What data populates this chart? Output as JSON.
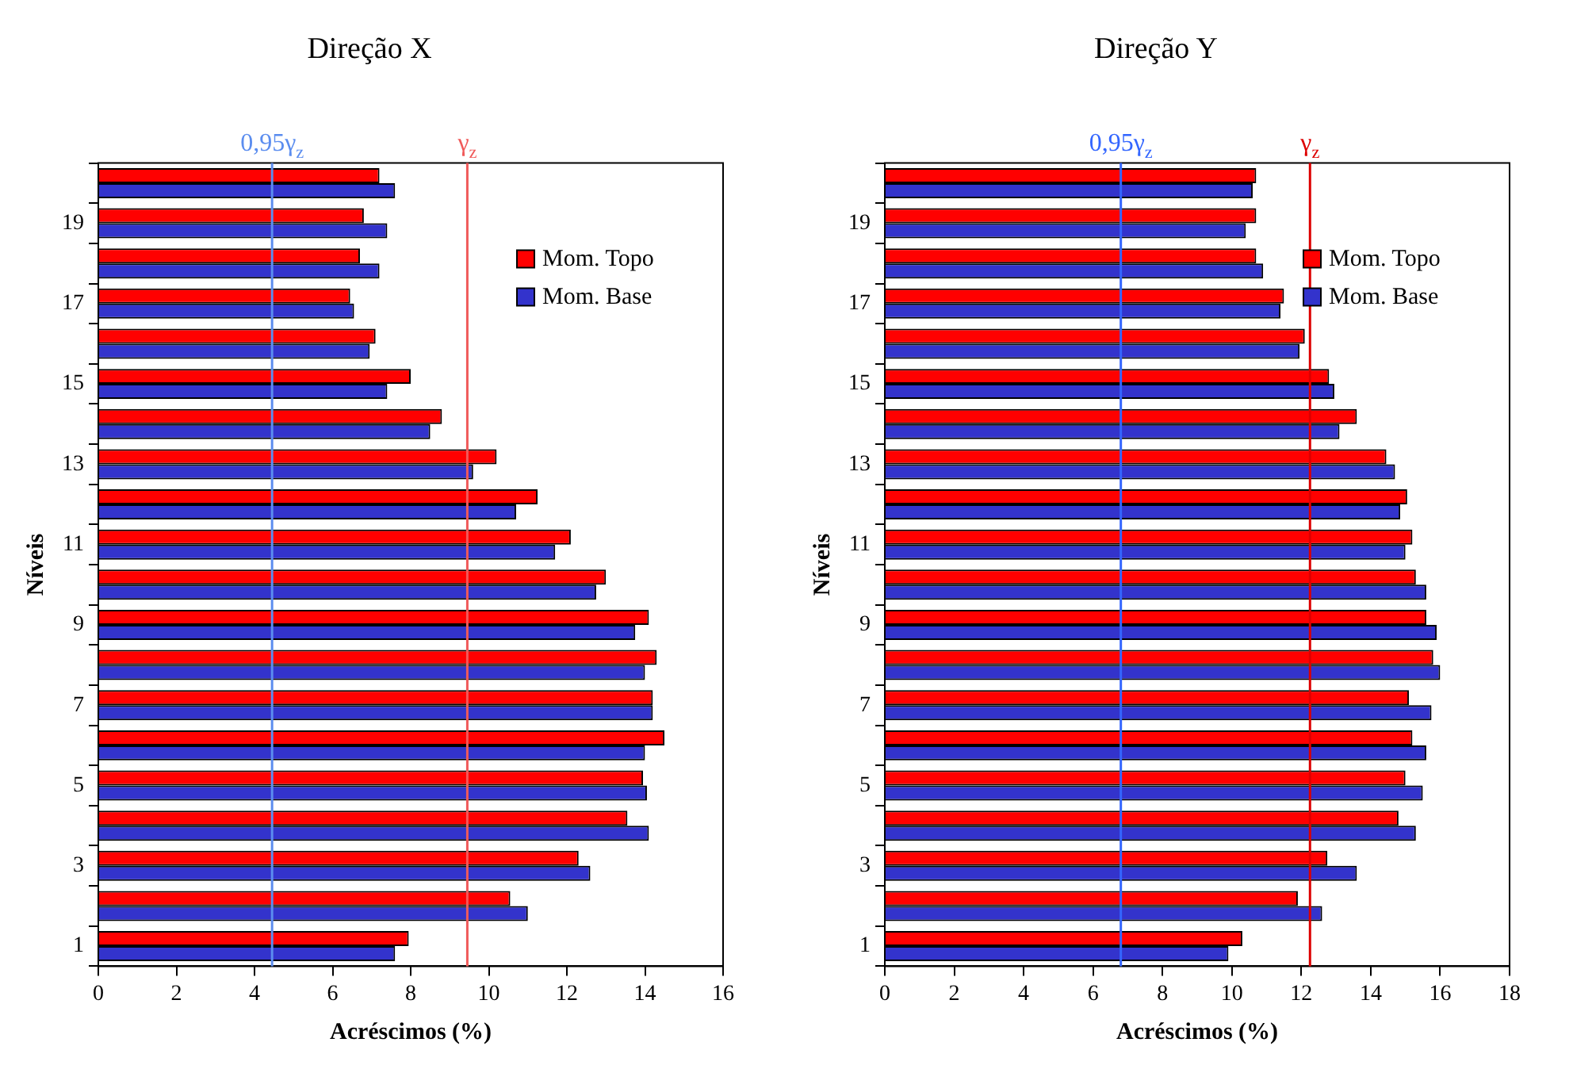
{
  "chart_data": [
    {
      "type": "bar",
      "orientation": "horizontal",
      "title": "Direção X",
      "xlabel": "Acréscimos (%)",
      "ylabel": "Níveis",
      "legend": "top right",
      "categories": [
        null,
        "19",
        null,
        "17",
        null,
        "15",
        null,
        "13",
        null,
        "11",
        null,
        "9",
        null,
        "7",
        null,
        "5",
        null,
        "3",
        null,
        "1"
      ],
      "series": [
        {
          "name": "Mom. Topo",
          "color": "#ff0000",
          "values": [
            7.2,
            6.8,
            6.7,
            6.45,
            7.1,
            8.0,
            8.8,
            10.2,
            11.25,
            12.1,
            13.0,
            14.1,
            14.3,
            14.2,
            14.5,
            13.95,
            13.55,
            12.3,
            10.55,
            7.95
          ]
        },
        {
          "name": "Mom. Base",
          "color": "#3333cc",
          "values": [
            7.6,
            7.4,
            7.2,
            6.55,
            6.95,
            7.4,
            8.5,
            9.6,
            10.7,
            11.7,
            12.75,
            13.75,
            14.0,
            14.2,
            14.0,
            14.05,
            14.1,
            12.6,
            11.0,
            7.6
          ]
        }
      ],
      "xlim": [
        0,
        16
      ],
      "xticks": [
        0,
        2,
        4,
        6,
        8,
        10,
        12,
        14,
        16
      ],
      "ref_lines": [
        {
          "axis": "x",
          "value": 4.45,
          "label": "0,95γ$_{z}$",
          "color": "#5b8def"
        },
        {
          "axis": "x",
          "value": 9.45,
          "label": "γ$_{z}$",
          "color": "#f05a5a"
        }
      ]
    },
    {
      "type": "bar",
      "orientation": "horizontal",
      "title": "Direção Y",
      "xlabel": "Acréscimos (%)",
      "ylabel": "Níveis",
      "legend": "top right",
      "categories": [
        null,
        "19",
        null,
        "17",
        null,
        "15",
        null,
        "13",
        null,
        "11",
        null,
        "9",
        null,
        "7",
        null,
        "5",
        null,
        "3",
        null,
        "1"
      ],
      "series": [
        {
          "name": "Mom. Topo",
          "color": "#ff0000",
          "values": [
            10.7,
            10.7,
            10.7,
            11.5,
            12.1,
            12.8,
            13.6,
            14.45,
            15.05,
            15.2,
            15.3,
            15.6,
            15.8,
            15.1,
            15.2,
            15.0,
            14.8,
            12.75,
            11.9,
            10.3
          ]
        },
        {
          "name": "Mom. Base",
          "color": "#3333cc",
          "values": [
            10.6,
            10.4,
            10.9,
            11.4,
            11.95,
            12.95,
            13.1,
            14.7,
            14.85,
            15.0,
            15.6,
            15.9,
            16.0,
            15.75,
            15.6,
            15.5,
            15.3,
            13.6,
            12.6,
            9.9
          ]
        }
      ],
      "xlim": [
        0,
        18
      ],
      "xticks": [
        0,
        2,
        4,
        6,
        8,
        10,
        12,
        14,
        16,
        18
      ],
      "ref_lines": [
        {
          "axis": "x",
          "value": 6.8,
          "label": "0,95γ$_{z}$",
          "color": "#3366ff"
        },
        {
          "axis": "x",
          "value": 12.25,
          "label": "γ$_{z}$",
          "color": "#dd0000"
        }
      ]
    }
  ]
}
